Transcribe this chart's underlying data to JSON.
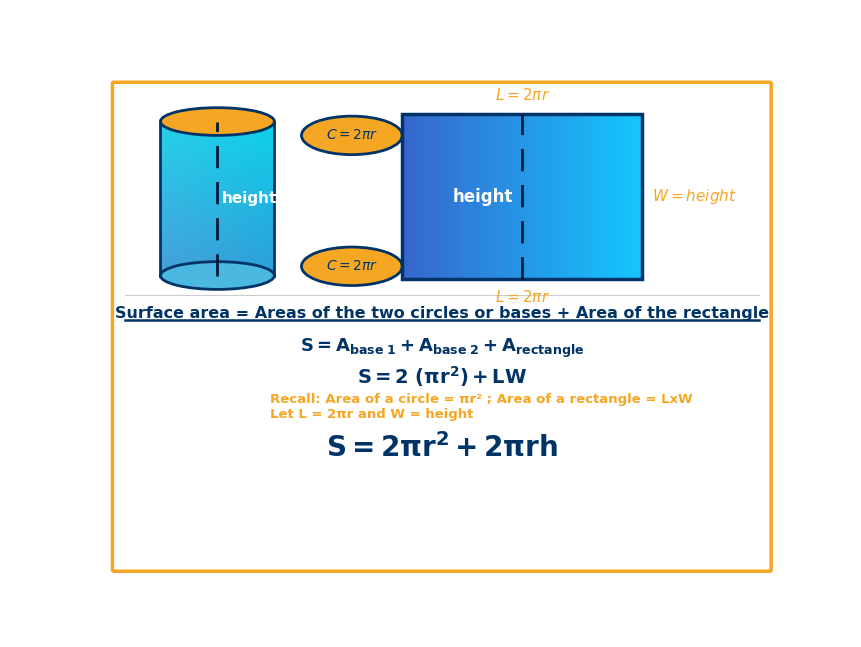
{
  "bg_color": "#ffffff",
  "border_color": "#f5a623",
  "dark_blue": "#003366",
  "orange": "#f5a623",
  "white": "#ffffff",
  "heading_text": "Surface area = Areas of the two circles or bases + Area of the rectangle",
  "recall_line1": "Recall: Area of a circle = πr² ; Area of a rectangle = LxW",
  "recall_line2": "Let L = 2πr and W = height"
}
